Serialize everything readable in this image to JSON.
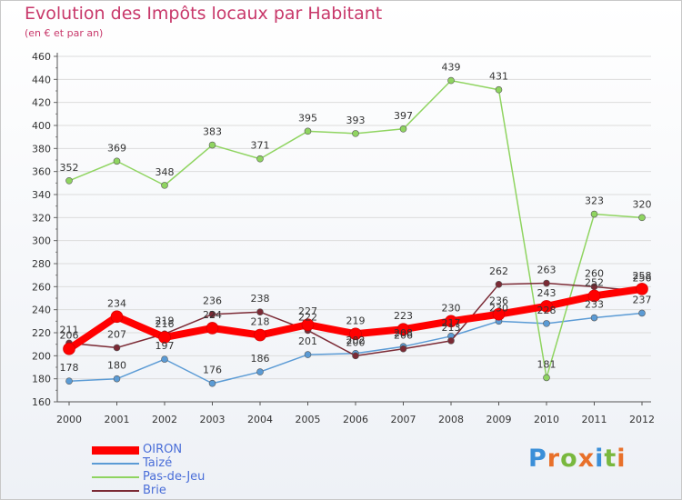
{
  "header": {
    "title": "Evolution des Impôts locaux par Habitant",
    "subtitle": "(en € et par an)"
  },
  "logo": {
    "text": "Proxiti",
    "colors": [
      "#3b8fd8",
      "#e8702a",
      "#79b83e",
      "#e8702a",
      "#3b8fd8",
      "#79b83e",
      "#e8702a"
    ]
  },
  "chart_data": {
    "type": "line",
    "title": "Evolution des Impôts locaux par Habitant",
    "subtitle": "(en € et par an)",
    "x": [
      2000,
      2001,
      2002,
      2003,
      2004,
      2005,
      2006,
      2007,
      2008,
      2009,
      2010,
      2011,
      2012
    ],
    "x_tick_labels": [
      "2000",
      "2001",
      "2002",
      "2003",
      "2004",
      "2005",
      "2006",
      "2007",
      "2008",
      "2009",
      "2010",
      "2011",
      "2012"
    ],
    "ylim": [
      160,
      460
    ],
    "y_ticks": [
      160,
      180,
      200,
      220,
      240,
      260,
      280,
      300,
      320,
      340,
      360,
      380,
      400,
      420,
      440,
      460
    ],
    "y_tick_labels": [
      "160",
      "180",
      "200",
      "220",
      "240",
      "260",
      "280",
      "300",
      "320",
      "340",
      "360",
      "380",
      "400",
      "420",
      "440",
      "460"
    ],
    "grid": "horizontal",
    "legend_position": "bottom-left",
    "series": [
      {
        "name": "Taizé",
        "color": "#5b9bd5",
        "emphasis": false,
        "values": [
          178,
          180,
          197,
          176,
          186,
          201,
          202,
          208,
          217,
          230,
          228,
          233,
          237
        ],
        "labels": [
          "178",
          "180",
          "197",
          "176",
          "186",
          "201",
          "202",
          "208",
          "217",
          "230",
          "228",
          "233",
          "237"
        ]
      },
      {
        "name": "Pas-de-Jeu",
        "color": "#8fd460",
        "emphasis": false,
        "values": [
          352,
          369,
          348,
          383,
          371,
          395,
          393,
          397,
          439,
          431,
          181,
          323,
          320
        ],
        "labels": [
          "352",
          "369",
          "348",
          "383",
          "371",
          "395",
          "393",
          "397",
          "439",
          "431",
          "181",
          "323",
          "320"
        ]
      },
      {
        "name": "Brie",
        "color": "#7b2a35",
        "emphasis": false,
        "values": [
          211,
          207,
          219,
          236,
          238,
          222,
          200,
          206,
          213,
          262,
          263,
          260,
          256
        ],
        "labels": [
          "211",
          "207",
          "219",
          "236",
          "238",
          "222",
          "200",
          "206",
          "213",
          "262",
          "263",
          "260",
          "256"
        ]
      },
      {
        "name": "OIRON",
        "color": "#ff0000",
        "emphasis": true,
        "values": [
          206,
          234,
          216,
          224,
          218,
          227,
          219,
          223,
          230,
          236,
          243,
          252,
          258
        ],
        "labels": [
          "206",
          "234",
          "216",
          "224",
          "218",
          "227",
          "219",
          "223",
          "230",
          "236",
          "243",
          "252",
          "258"
        ]
      }
    ]
  },
  "legend": {
    "items": [
      {
        "name": "OIRON",
        "color": "#ff0000",
        "text_color": "#4a6ed8",
        "thickness": 9
      },
      {
        "name": "Taizé",
        "color": "#5b9bd5",
        "text_color": "#4a6ed8",
        "thickness": 2
      },
      {
        "name": "Pas-de-Jeu",
        "color": "#8fd460",
        "text_color": "#4a6ed8",
        "thickness": 2
      },
      {
        "name": "Brie",
        "color": "#7b2a35",
        "text_color": "#4a6ed8",
        "thickness": 2
      }
    ]
  }
}
